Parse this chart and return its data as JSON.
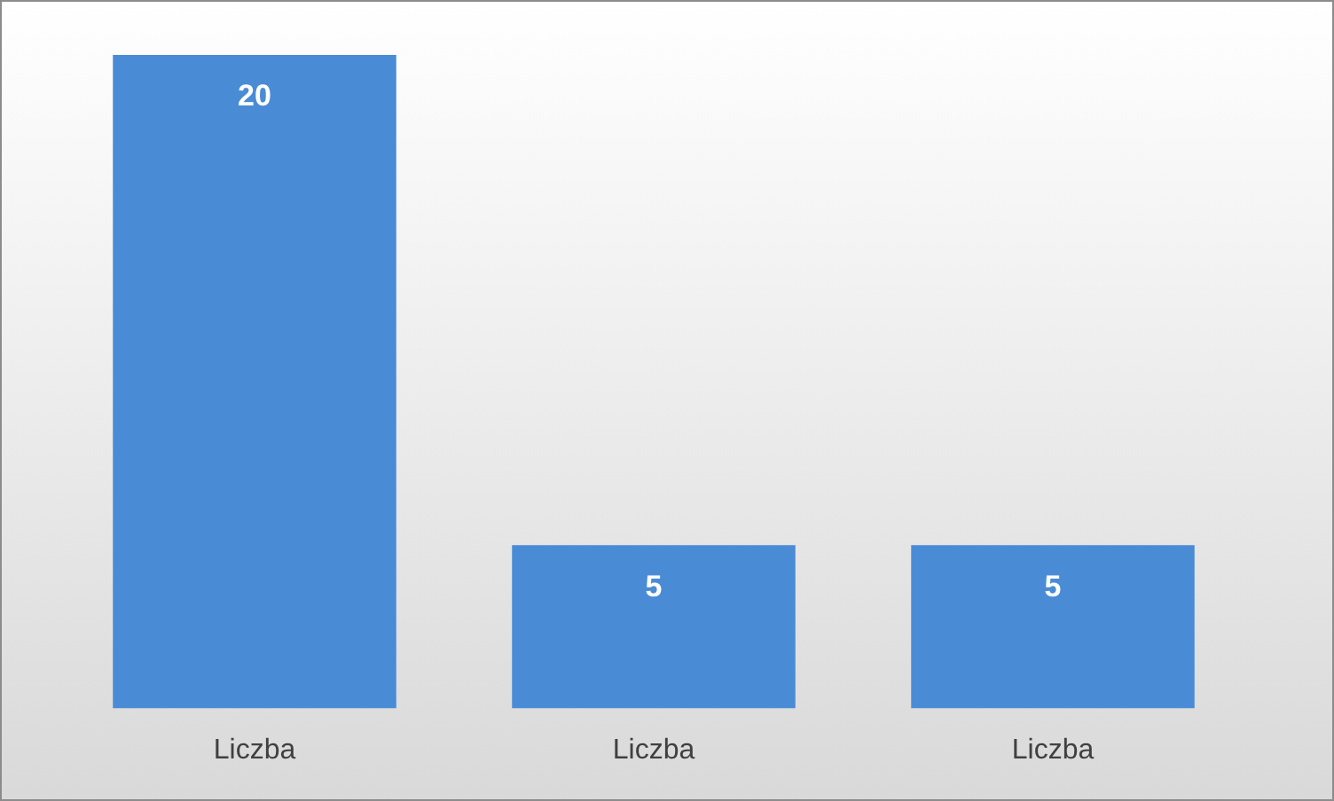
{
  "chart_data": {
    "type": "bar",
    "categories": [
      "Liczba",
      "Liczba",
      "Liczba"
    ],
    "values": [
      20,
      5,
      5
    ],
    "color": "#4a8bd6",
    "data_labels": true,
    "grid": false,
    "legend": false
  }
}
